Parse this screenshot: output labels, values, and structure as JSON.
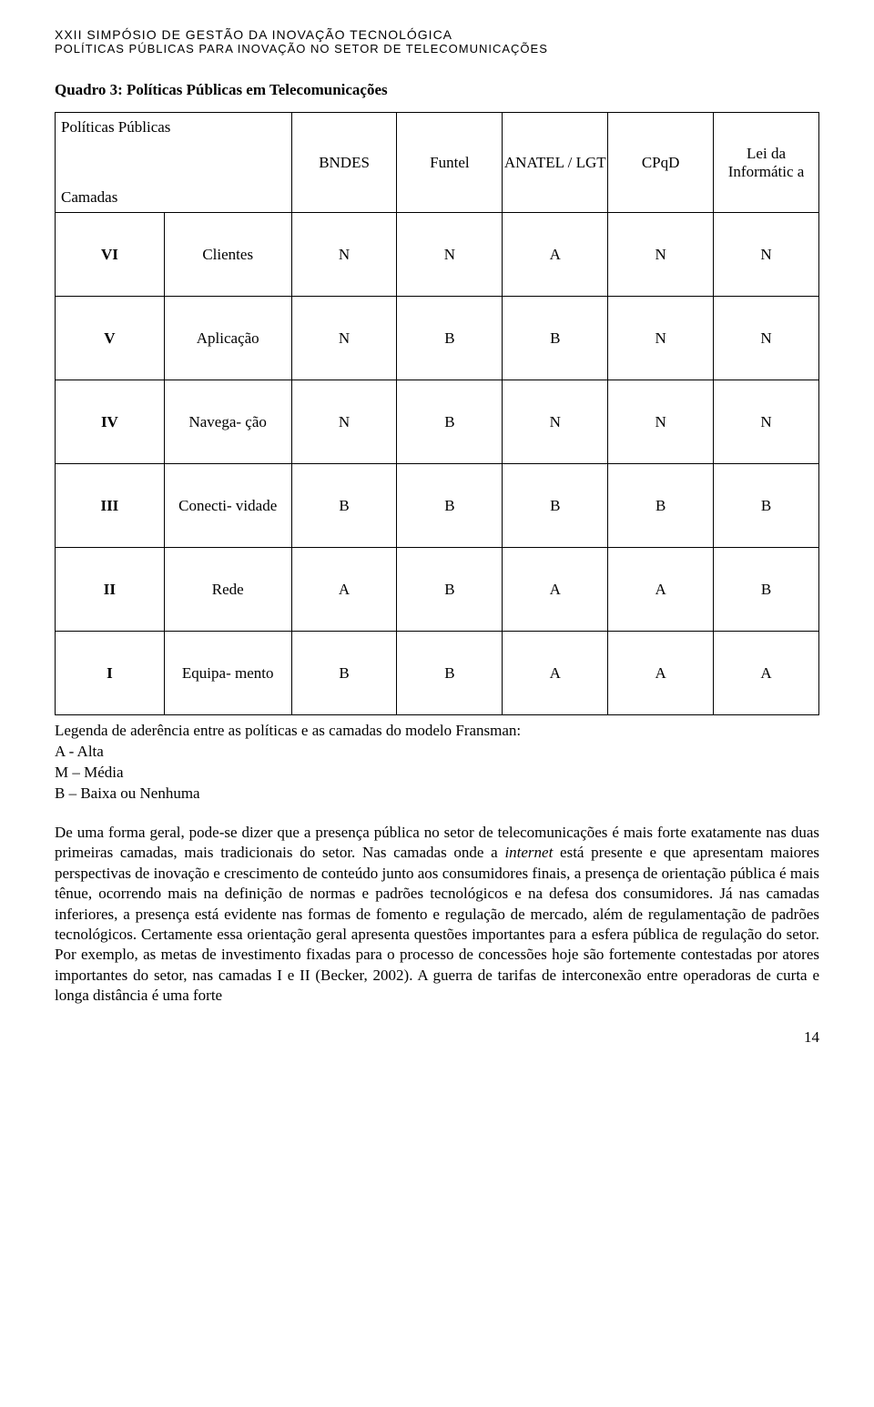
{
  "header": {
    "line1": "XXII Simpósio de Gestão da Inovação Tecnológica",
    "line2": "Políticas Públicas para Inovação no Setor de Telecomunicações",
    "line1_fontsize": 14,
    "line2_fontsize": 13,
    "color": "#000000"
  },
  "quadro": {
    "title": "Quadro 3: Políticas Públicas em Telecomunicações",
    "title_fontsize": 17
  },
  "table": {
    "type": "table",
    "background_color": "#ffffff",
    "border_color": "#000000",
    "cell_fontsize": 17,
    "header_top_label": "Políticas Públicas",
    "header_bottom_label": "Camadas",
    "policy_columns": [
      "BNDES",
      "Funtel",
      "ANATEL / LGT",
      "CPqD",
      "Lei da Informátic a"
    ],
    "rows": [
      {
        "roman": "VI",
        "label": "Clientes",
        "cells": [
          "N",
          "N",
          "A",
          "N",
          "N"
        ]
      },
      {
        "roman": "V",
        "label": "Aplicação",
        "cells": [
          "N",
          "B",
          "B",
          "N",
          "N"
        ]
      },
      {
        "roman": "IV",
        "label": "Navega- ção",
        "cells": [
          "N",
          "B",
          "N",
          "N",
          "N"
        ]
      },
      {
        "roman": "III",
        "label": "Conecti- vidade",
        "cells": [
          "B",
          "B",
          "B",
          "B",
          "B"
        ]
      },
      {
        "roman": "II",
        "label": "Rede",
        "cells": [
          "A",
          "B",
          "A",
          "A",
          "B"
        ]
      },
      {
        "roman": "I",
        "label": "Equipa- mento",
        "cells": [
          "B",
          "B",
          "A",
          "A",
          "A"
        ]
      }
    ]
  },
  "legend": {
    "fontsize": 17,
    "line1": "Legenda de aderência entre as políticas e as camadas do modelo Fransman:",
    "line2": "A - Alta",
    "line3": "M – Média",
    "line4": "B – Baixa ou Nenhuma"
  },
  "body": {
    "fontsize": 17,
    "text": "De uma forma geral, pode-se dizer que a presença pública no setor de telecomunicações é mais forte exatamente nas duas primeiras camadas, mais tradicionais do setor. Nas camadas onde a internet está presente e que apresentam maiores perspectivas de inovação e crescimento de conteúdo junto aos consumidores finais, a presença de orientação pública é mais tênue, ocorrendo mais na definição de normas e padrões tecnológicos e na defesa dos consumidores. Já nas camadas inferiores, a presença está evidente nas formas de fomento e regulação de mercado, além de regulamentação de padrões tecnológicos. Certamente essa orientação geral apresenta questões importantes para a esfera pública de regulação do setor. Por exemplo, as metas de investimento fixadas para o processo de concessões hoje são fortemente contestadas por atores importantes do setor, nas camadas I e II (Becker, 2002). A guerra de tarifas de interconexão entre operadoras de curta e longa distância é uma forte"
  },
  "page_number": "14",
  "colors": {
    "text": "#000000",
    "background": "#ffffff",
    "border": "#000000"
  }
}
